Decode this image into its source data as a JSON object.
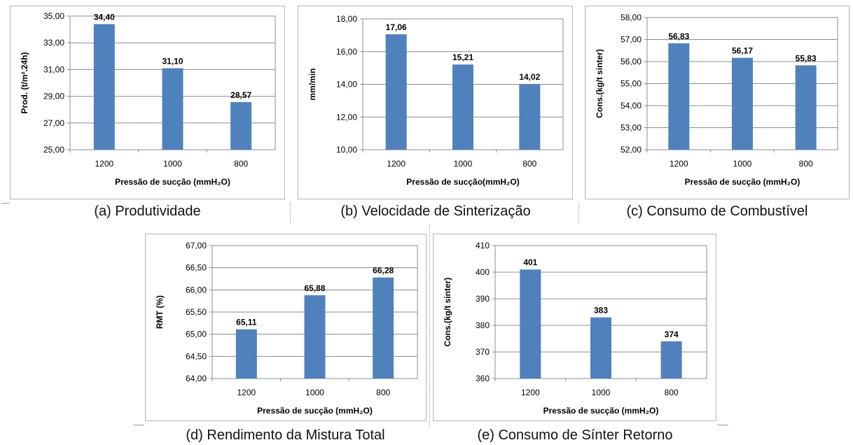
{
  "chart_data": [
    {
      "id": "a",
      "type": "bar",
      "caption": "(a) Produtividade",
      "categories": [
        "1200",
        "1000",
        "800"
      ],
      "values": [
        34.4,
        31.1,
        28.57
      ],
      "value_labels": [
        "34,40",
        "31,10",
        "28,57"
      ],
      "ylabel": "Prod. (t/m².24h)",
      "xlabel": "Pressão de sucção (mmH₂O)",
      "ylim": [
        25,
        35
      ],
      "yticks": [
        "25,00",
        "27,00",
        "29,00",
        "31,00",
        "33,00",
        "35,00"
      ],
      "ytick_values": [
        25,
        27,
        29,
        31,
        33,
        35
      ],
      "grid": true,
      "bar_color": "#4f81bd"
    },
    {
      "id": "b",
      "type": "bar",
      "caption": "(b) Velocidade de Sinterização",
      "categories": [
        "1200",
        "1000",
        "800"
      ],
      "values": [
        17.06,
        15.21,
        14.02
      ],
      "value_labels": [
        "17,06",
        "15,21",
        "14,02"
      ],
      "ylabel": "mm/min",
      "xlabel": "Pressão de sucção(mmH₂O)",
      "ylim": [
        10,
        18
      ],
      "yticks": [
        "10,00",
        "12,00",
        "14,00",
        "16,00",
        "18,00"
      ],
      "ytick_values": [
        10,
        12,
        14,
        16,
        18
      ],
      "grid": true,
      "bar_color": "#4f81bd"
    },
    {
      "id": "c",
      "type": "bar",
      "caption": "(c) Consumo de Combustível",
      "categories": [
        "1200",
        "1000",
        "800"
      ],
      "values": [
        56.83,
        56.17,
        55.83
      ],
      "value_labels": [
        "56,83",
        "56,17",
        "55,83"
      ],
      "ylabel": "Cons.(kg/t sinter)",
      "xlabel": "Pressão de sucção (mmH₂O)",
      "ylim": [
        52,
        58
      ],
      "yticks": [
        "52,00",
        "53,00",
        "54,00",
        "55,00",
        "56,00",
        "57,00",
        "58,00"
      ],
      "ytick_values": [
        52,
        53,
        54,
        55,
        56,
        57,
        58
      ],
      "grid": true,
      "bar_color": "#4f81bd"
    },
    {
      "id": "d",
      "type": "bar",
      "caption": "(d) Rendimento da Mistura Total",
      "categories": [
        "1200",
        "1000",
        "800"
      ],
      "values": [
        65.11,
        65.88,
        66.28
      ],
      "value_labels": [
        "65,11",
        "65,88",
        "66,28"
      ],
      "ylabel": "RMT (%)",
      "xlabel": "Pressão de sucção (mmH₂O)",
      "ylim": [
        64,
        67
      ],
      "yticks": [
        "64,00",
        "64,50",
        "65,00",
        "65,50",
        "66,00",
        "66,50",
        "67,00"
      ],
      "ytick_values": [
        64,
        64.5,
        65,
        65.5,
        66,
        66.5,
        67
      ],
      "grid": true,
      "bar_color": "#4f81bd"
    },
    {
      "id": "e",
      "type": "bar",
      "caption": "(e) Consumo de Sínter Retorno",
      "categories": [
        "1200",
        "1000",
        "800"
      ],
      "values": [
        401,
        383,
        374
      ],
      "value_labels": [
        "401",
        "383",
        "374"
      ],
      "ylabel": "Cons.(kg/t sinter)",
      "xlabel": "Pressão de sucção (mmH₂O)",
      "ylim": [
        360,
        410
      ],
      "yticks": [
        "360",
        "370",
        "380",
        "390",
        "400",
        "410"
      ],
      "ytick_values": [
        360,
        370,
        380,
        390,
        400,
        410
      ],
      "grid": true,
      "bar_color": "#4f81bd"
    }
  ]
}
